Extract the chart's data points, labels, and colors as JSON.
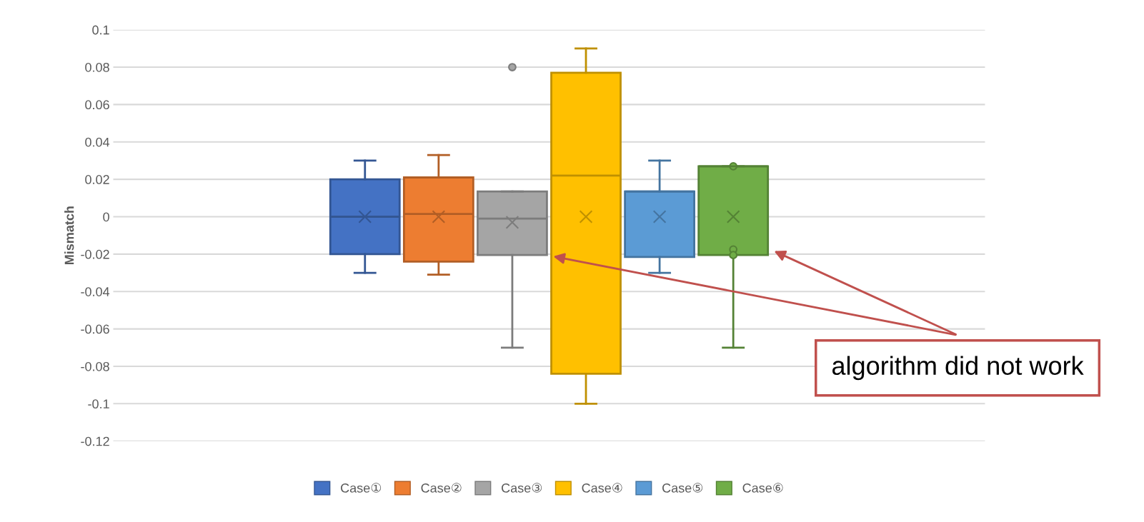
{
  "chart_data": {
    "type": "box",
    "ylabel": "Mismatch",
    "categories": [
      null
    ],
    "series": [
      {
        "name": "Case①",
        "color": "#4472c4",
        "boxes": [
          {
            "low": -0.03,
            "q1": -0.02,
            "median": 0,
            "q3": 0.02,
            "high": 0.03,
            "mean": 0
          }
        ]
      },
      {
        "name": "Case②",
        "color": "#ed7d31",
        "boxes": [
          {
            "low": -0.031,
            "q1": -0.024,
            "median": 0.0015,
            "q3": 0.021,
            "high": 0.033,
            "mean": 0
          }
        ]
      },
      {
        "name": "Case③",
        "color": "#a5a5a5",
        "boxes": [
          {
            "low": -0.07,
            "q1": -0.0205,
            "median": -0.001,
            "q3": 0.0135,
            "high": 0.0135,
            "mean": -0.003,
            "outliers": [
              0.08
            ]
          }
        ]
      },
      {
        "name": "Case④",
        "color": "#ffc000",
        "boxes": [
          {
            "low": -0.1,
            "q1": -0.084,
            "median": 0.022,
            "q3": 0.077,
            "high": 0.09,
            "mean": 0
          }
        ]
      },
      {
        "name": "Case⑤",
        "color": "#5b9bd5",
        "boxes": [
          {
            "low": -0.03,
            "q1": -0.0215,
            "median": 0.0135,
            "q3": 0.0135,
            "high": 0.03,
            "mean": 0
          }
        ]
      },
      {
        "name": "Case⑥",
        "color": "#70ad47",
        "boxes": [
          {
            "low": -0.07,
            "q1": -0.0205,
            "median": 0.027,
            "q3": 0.027,
            "high": 0.027,
            "mean": 0,
            "outliers": [
              0.027,
              -0.0175,
              -0.0205
            ]
          }
        ]
      }
    ],
    "ylim": [
      -0.12,
      0.1
    ],
    "yticks": [
      -0.12,
      -0.1,
      -0.08,
      -0.06,
      -0.04,
      -0.02,
      0,
      0.02,
      0.04,
      0.06,
      0.08,
      0.1
    ],
    "grid": "y",
    "legend": "bottom",
    "annotations": [
      "algorithm did not work"
    ]
  }
}
